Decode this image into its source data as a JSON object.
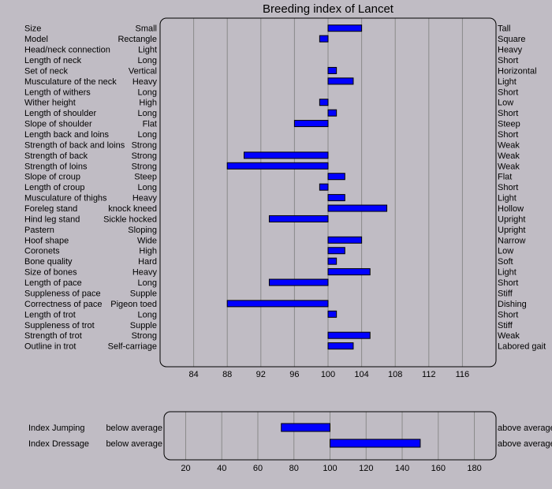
{
  "chart_data": [
    {
      "type": "bar",
      "title": "Breeding index of Lancet",
      "baseline": 100,
      "xlim": [
        80,
        120
      ],
      "ticks": [
        84,
        88,
        92,
        96,
        100,
        104,
        108,
        112,
        116
      ],
      "bar_color": "#0000ff",
      "rows": [
        {
          "trait": "Size",
          "low": "Small",
          "high": "Tall",
          "value": 104
        },
        {
          "trait": "Model",
          "low": "Rectangle",
          "high": "Square",
          "value": 99
        },
        {
          "trait": "Head/neck connection",
          "low": "Light",
          "high": "Heavy",
          "value": 100
        },
        {
          "trait": "Length of neck",
          "low": "Long",
          "high": "Short",
          "value": 100
        },
        {
          "trait": "Set of neck",
          "low": "Vertical",
          "high": "Horizontal",
          "value": 101
        },
        {
          "trait": "Musculature of the neck",
          "low": "Heavy",
          "high": "Light",
          "value": 103
        },
        {
          "trait": "Length of withers",
          "low": "Long",
          "high": "Short",
          "value": 100
        },
        {
          "trait": "Wither height",
          "low": "High",
          "high": "Low",
          "value": 99
        },
        {
          "trait": "Length of shoulder",
          "low": "Long",
          "high": "Short",
          "value": 101
        },
        {
          "trait": "Slope of shoulder",
          "low": "Flat",
          "high": "Steep",
          "value": 96
        },
        {
          "trait": "Length back and loins",
          "low": "Long",
          "high": "Short",
          "value": 100
        },
        {
          "trait": "Strength of back and loins",
          "low": "Strong",
          "high": "Weak",
          "value": 100
        },
        {
          "trait": "Strength of back",
          "low": "Strong",
          "high": "Weak",
          "value": 90
        },
        {
          "trait": "Strength of loins",
          "low": "Strong",
          "high": "Weak",
          "value": 88
        },
        {
          "trait": "Slope of croup",
          "low": "Steep",
          "high": "Flat",
          "value": 102
        },
        {
          "trait": "Length of croup",
          "low": "Long",
          "high": "Short",
          "value": 99
        },
        {
          "trait": "Musculature of thighs",
          "low": "Heavy",
          "high": "Light",
          "value": 102
        },
        {
          "trait": "Foreleg stand",
          "low": "knock kneed",
          "high": "Hollow",
          "value": 107
        },
        {
          "trait": "Hind leg stand",
          "low": "Sickle hocked",
          "high": "Upright",
          "value": 93
        },
        {
          "trait": "Pastern",
          "low": "Sloping",
          "high": "Upright",
          "value": 100
        },
        {
          "trait": "Hoof shape",
          "low": "Wide",
          "high": "Narrow",
          "value": 104
        },
        {
          "trait": "Coronets",
          "low": "High",
          "high": "Low",
          "value": 102
        },
        {
          "trait": "Bone quality",
          "low": "Hard",
          "high": "Soft",
          "value": 101
        },
        {
          "trait": "Size of bones",
          "low": "Heavy",
          "high": "Light",
          "value": 105
        },
        {
          "trait": "Length of pace",
          "low": "Long",
          "high": "Short",
          "value": 93
        },
        {
          "trait": "Suppleness of pace",
          "low": "Supple",
          "high": "Stiff",
          "value": 100
        },
        {
          "trait": "Correctness of pace",
          "low": "Pigeon toed",
          "high": "Dishing",
          "value": 88
        },
        {
          "trait": "Length of trot",
          "low": "Long",
          "high": "Short",
          "value": 101
        },
        {
          "trait": "Suppleness of trot",
          "low": "Supple",
          "high": "Stiff",
          "value": 100
        },
        {
          "trait": "Strength of trot",
          "low": "Strong",
          "high": "Weak",
          "value": 105
        },
        {
          "trait": "Outline in trot",
          "low": "Self-carriage",
          "high": "Labored gait",
          "value": 103
        }
      ]
    },
    {
      "type": "bar",
      "title": "",
      "baseline": 100,
      "xlim": [
        8,
        192
      ],
      "ticks": [
        20,
        40,
        60,
        80,
        100,
        120,
        140,
        160,
        180
      ],
      "bar_color": "#0000ff",
      "rows": [
        {
          "trait": "Index Jumping",
          "low": "below average",
          "high": "above average",
          "value": 73
        },
        {
          "trait": "Index Dressage",
          "low": "below average",
          "high": "above average",
          "value": 150
        }
      ]
    }
  ]
}
